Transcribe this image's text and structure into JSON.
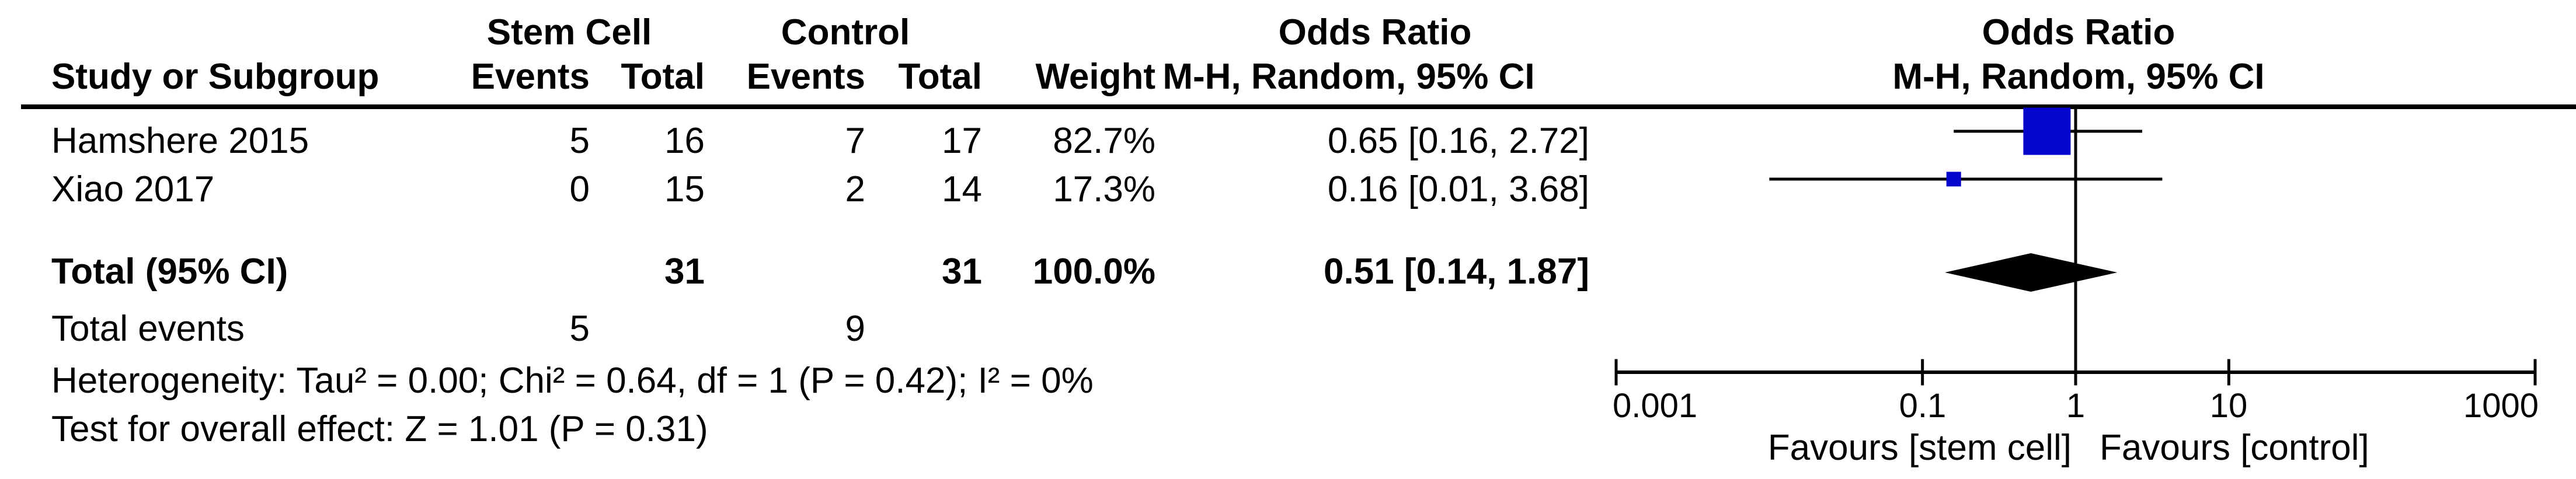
{
  "header": {
    "group_stem": "Stem Cell",
    "group_control": "Control",
    "or_col_title": "Odds Ratio",
    "or_col_subtitle": "M-H, Random, 95% CI",
    "plot_title": "Odds Ratio",
    "plot_subtitle": "M-H, Random, 95% CI",
    "col_study": "Study or Subgroup",
    "col_events_stem": "Events",
    "col_total_stem": "Total",
    "col_events_control": "Events",
    "col_total_control": "Total",
    "col_weight": "Weight"
  },
  "rows": [
    {
      "study": "Hamshere 2015",
      "sc_events": "5",
      "sc_total": "16",
      "c_events": "7",
      "c_total": "17",
      "weight": "82.7%",
      "or_ci": "0.65 [0.16, 2.72]"
    },
    {
      "study": "Xiao 2017",
      "sc_events": "0",
      "sc_total": "15",
      "c_events": "2",
      "c_total": "14",
      "weight": "17.3%",
      "or_ci": "0.16 [0.01, 3.68]"
    }
  ],
  "total_row": {
    "label": "Total (95% CI)",
    "sc_total": "31",
    "c_total": "31",
    "weight": "100.0%",
    "or_ci": "0.51 [0.14, 1.87]"
  },
  "total_events": {
    "label": "Total events",
    "sc": "5",
    "c": "9"
  },
  "heterogeneity": "Heterogeneity: Tau² = 0.00; Chi² = 0.64, df = 1 (P = 0.42); I² = 0%",
  "overall_effect": "Test for overall effect: Z = 1.01 (P = 0.31)",
  "colors": {
    "marker_square": "#0505CB",
    "line": "#000000",
    "background": "#FFFFFF"
  },
  "chart_data": {
    "type": "forest",
    "effect_measure": "Odds Ratio",
    "model": "M-H, Random, 95% CI",
    "x_axis": {
      "scale": "log",
      "ticks": [
        0.001,
        0.1,
        1,
        10,
        1000
      ],
      "tick_labels": [
        "0.001",
        "0.1",
        "1",
        "10",
        "1000"
      ],
      "range": [
        0.001,
        1000
      ]
    },
    "studies": [
      {
        "name": "Hamshere 2015",
        "or": 0.65,
        "ci_low": 0.16,
        "ci_high": 2.72,
        "weight_pct": 82.7
      },
      {
        "name": "Xiao 2017",
        "or": 0.16,
        "ci_low": 0.01,
        "ci_high": 3.68,
        "weight_pct": 17.3
      }
    ],
    "total": {
      "label": "Total (95% CI)",
      "or": 0.51,
      "ci_low": 0.14,
      "ci_high": 1.87,
      "weight_pct": 100.0
    },
    "footer_left": "Favours [stem cell]",
    "footer_right": "Favours [control]"
  }
}
